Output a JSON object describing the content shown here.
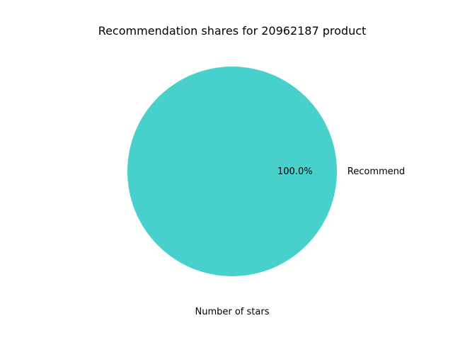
{
  "chart_data": {
    "type": "pie",
    "title": "Recommendation shares for 20962187 product",
    "xlabel": "Number of stars",
    "ylabel": "",
    "slices": [
      {
        "label": "Recommend",
        "value": 100.0,
        "percent_label": "100.0%",
        "color": "#48D1CC"
      }
    ],
    "legend": false
  }
}
